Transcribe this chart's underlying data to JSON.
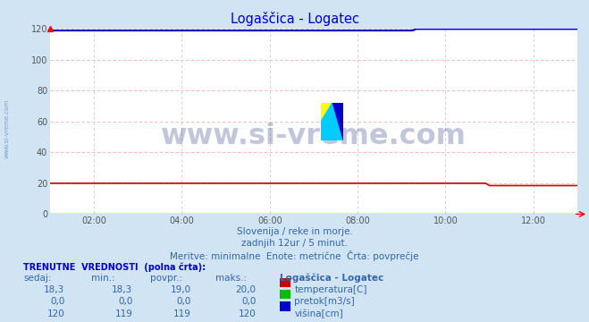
{
  "title": "Logaščica - Logatec",
  "bg_color": "#d0e4f4",
  "plot_bg_color": "#ffffff",
  "x_ticks": [
    "02:00",
    "04:00",
    "06:00",
    "08:00",
    "10:00",
    "12:00"
  ],
  "x_tick_positions": [
    12,
    36,
    60,
    84,
    108,
    132
  ],
  "x_total_points": 145,
  "xlim": [
    0,
    144
  ],
  "ylim": [
    0,
    120
  ],
  "yticks": [
    0,
    20,
    40,
    60,
    80,
    100,
    120
  ],
  "grid_color_h": "#ffaaaa",
  "grid_color_v": "#cccccc",
  "temp_color": "#cc0000",
  "pretok_color": "#00bb00",
  "visina_color": "#0000cc",
  "watermark_text": "www.si-vreme.com",
  "watermark_color": "#334488",
  "watermark_alpha": 0.3,
  "subtitle1": "Slovenija / reke in morje.",
  "subtitle2": "zadnjih 12ur / 5 minut.",
  "subtitle3": "Meritve: minimalne  Enote: metrične  Črta: povprečje",
  "table_header": "TRENUTNE  VREDNOSTI  (polna črta):",
  "col_headers": [
    "sedaj:",
    "min.:",
    "povpr.:",
    "maks.:",
    "Logaščica - Logatec"
  ],
  "row1_vals": [
    "18,3",
    "18,3",
    "19,0",
    "20,0"
  ],
  "row1_label": "temperatura[C]",
  "row2_vals": [
    "0,0",
    "0,0",
    "0,0",
    "0,0"
  ],
  "row2_label": "pretok[m3/s]",
  "row3_vals": [
    "120",
    "119",
    "119",
    "120"
  ],
  "row3_label": "višina[cm]",
  "logo_colors": [
    "#ffff00",
    "#00ccff",
    "#0000cc"
  ],
  "title_color": "#0000cc",
  "text_color": "#3366aa",
  "sidebar_text": "www.si-vreme.com"
}
